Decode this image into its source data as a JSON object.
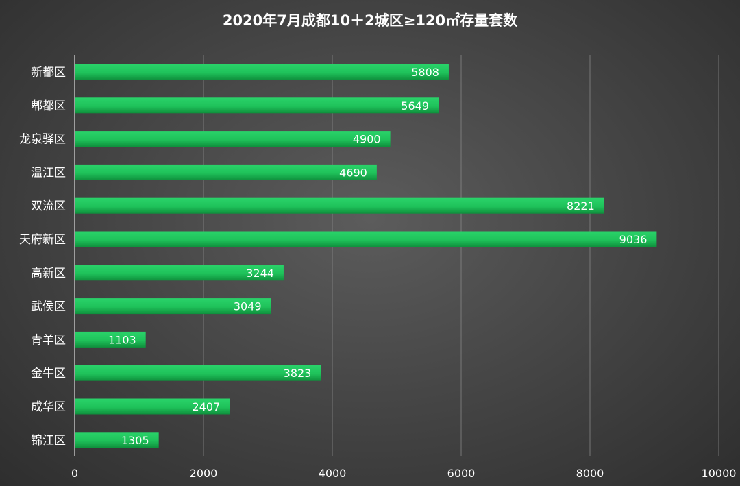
{
  "chart_data": {
    "type": "bar",
    "orientation": "horizontal",
    "title": "2020年7月成都10＋2城区≥120㎡存量套数",
    "xlabel": "",
    "ylabel": "",
    "xlim": [
      0,
      10000
    ],
    "xticks": [
      0,
      2000,
      4000,
      6000,
      8000,
      10000
    ],
    "grid": true,
    "legend": "none",
    "bar_color": "#1fc25a",
    "bar_color_dark": "#0f8f3c",
    "categories": [
      "新都区",
      "郫都区",
      "龙泉驿区",
      "温江区",
      "双流区",
      "天府新区",
      "高新区",
      "武侯区",
      "青羊区",
      "金牛区",
      "成华区",
      "锦江区"
    ],
    "values": [
      5808,
      5649,
      4900,
      4690,
      8221,
      9036,
      3244,
      3049,
      1103,
      3823,
      2407,
      1305
    ]
  }
}
